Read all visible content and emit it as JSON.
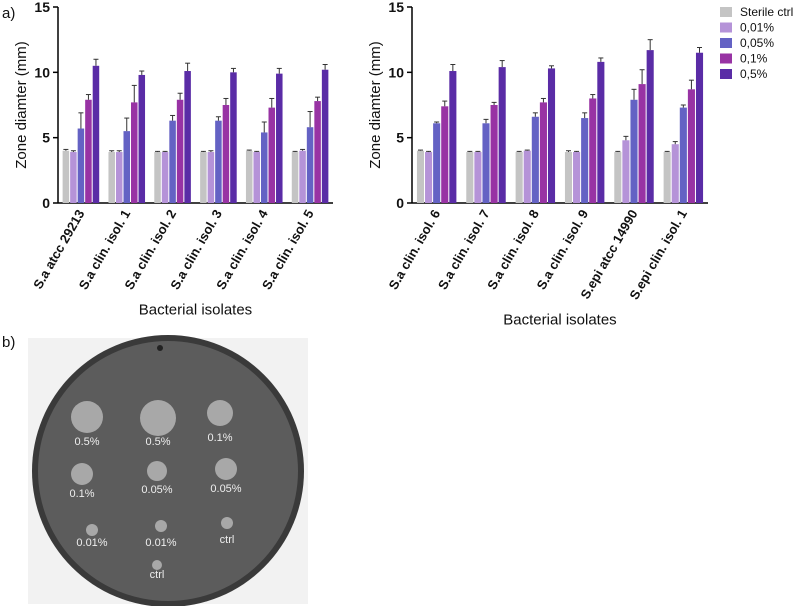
{
  "panels": [
    "a)",
    "b)"
  ],
  "plate": {
    "labels": [
      "0.5%",
      "0.5%",
      "0.1%",
      "0.1%",
      "0.05%",
      "0.05%",
      "0.01%",
      "0.01%",
      "ctrl",
      "ctrl"
    ]
  },
  "chart_data": [
    {
      "type": "bar",
      "ylabel": "Zone diamter (mm)",
      "xlabel": "Bacterial isolates",
      "categories": [
        "S.a atcc 29213",
        "S.a clin. isol. 1",
        "S.a clin. isol. 2",
        "S.a clin. isol. 3",
        "S.a clin. isol. 4",
        "S.a clin. isol. 5"
      ],
      "ylim": [
        0,
        15
      ],
      "yticks": [
        0,
        5,
        10,
        15
      ],
      "series": [
        {
          "name": "Sterile ctrl",
          "color": "#c4c4c4",
          "values": [
            4.0,
            3.9,
            3.9,
            3.9,
            4.0,
            3.9
          ],
          "errors": [
            0.1,
            0.1,
            0.05,
            0.05,
            0.05,
            0.05
          ]
        },
        {
          "name": "0,01%",
          "color": "#b593d8",
          "values": [
            3.9,
            3.9,
            3.9,
            3.9,
            3.9,
            4.0
          ],
          "errors": [
            0.1,
            0.1,
            0.05,
            0.1,
            0.05,
            0.1
          ]
        },
        {
          "name": "0,05%",
          "color": "#6462c4",
          "values": [
            5.7,
            5.5,
            6.3,
            6.3,
            5.4,
            5.8
          ],
          "errors": [
            1.2,
            1.0,
            0.4,
            0.3,
            0.8,
            1.2
          ]
        },
        {
          "name": "0,1%",
          "color": "#9833a4",
          "values": [
            7.9,
            7.7,
            7.9,
            7.5,
            7.3,
            7.8
          ],
          "errors": [
            0.4,
            1.3,
            0.5,
            0.5,
            0.7,
            0.3
          ]
        },
        {
          "name": "0,5%",
          "color": "#5a2ca6",
          "values": [
            10.5,
            9.8,
            10.1,
            10.0,
            9.9,
            10.2
          ],
          "errors": [
            0.5,
            0.3,
            0.6,
            0.3,
            0.4,
            0.4
          ]
        }
      ]
    },
    {
      "type": "bar",
      "ylabel": "Zone diamter (mm)",
      "xlabel": "Bacterial isolates",
      "categories": [
        "S.a clin. isol. 6",
        "S.a clin. isol. 7",
        "S.a clin. isol. 8",
        "S.a clin. isol. 9",
        "S.epi atcc 14990",
        "S.epi clin. isol. 1"
      ],
      "ylim": [
        0,
        15
      ],
      "yticks": [
        0,
        5,
        10,
        15
      ],
      "legend": "right",
      "series": [
        {
          "name": "Sterile ctrl",
          "color": "#c4c4c4",
          "values": [
            4.0,
            3.9,
            3.9,
            3.9,
            3.9,
            3.9
          ],
          "errors": [
            0.05,
            0.05,
            0.05,
            0.1,
            0.05,
            0.05
          ]
        },
        {
          "name": "0,01%",
          "color": "#b593d8",
          "values": [
            3.9,
            3.9,
            4.0,
            3.9,
            4.8,
            4.5
          ],
          "errors": [
            0.05,
            0.05,
            0.05,
            0.05,
            0.3,
            0.2
          ]
        },
        {
          "name": "0,05%",
          "color": "#6462c4",
          "values": [
            6.1,
            6.1,
            6.6,
            6.5,
            7.9,
            7.3
          ],
          "errors": [
            0.1,
            0.3,
            0.3,
            0.4,
            0.8,
            0.2
          ]
        },
        {
          "name": "0,1%",
          "color": "#9833a4",
          "values": [
            7.4,
            7.5,
            7.7,
            8.0,
            9.1,
            8.7
          ],
          "errors": [
            0.4,
            0.2,
            0.3,
            0.3,
            1.1,
            0.7
          ]
        },
        {
          "name": "0,5%",
          "color": "#5a2ca6",
          "values": [
            10.1,
            10.4,
            10.3,
            10.8,
            11.7,
            11.5
          ],
          "errors": [
            0.5,
            0.5,
            0.2,
            0.3,
            0.8,
            0.4
          ]
        }
      ]
    }
  ]
}
